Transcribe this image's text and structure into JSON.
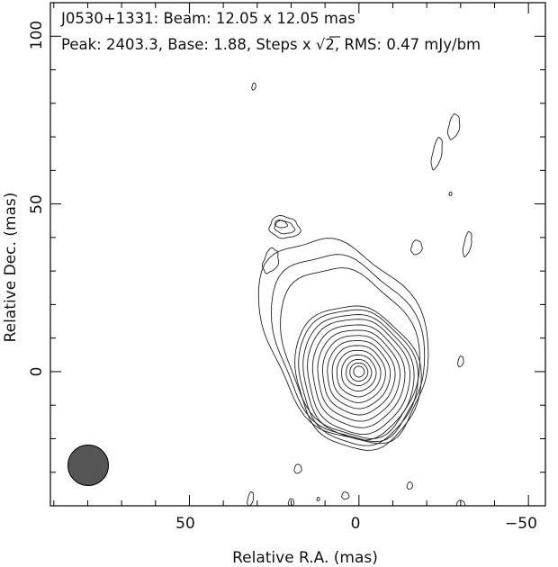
{
  "chart_data": {
    "type": "contour",
    "source": "J0530+1331",
    "title_line1": "J0530+1331: Beam: 12.05 x 12.05 mas",
    "title_line2_prefix": "Peak: 2403.3, Base: 1.88, Steps x ",
    "title_line2_root": "2",
    "title_line2_suffix": ", RMS: 0.47 mJy/bm",
    "beam_mas": [
      12.05,
      12.05
    ],
    "peak": 2403.3,
    "base": 1.88,
    "step_factor": "sqrt(2)",
    "rms": "0.47 mJy/bm",
    "xlabel": "Relative R.A. (mas)",
    "ylabel": "Relative Dec. (mas)",
    "xlim": [
      91,
      -55
    ],
    "ylim": [
      -40,
      110
    ],
    "x_ticks": [
      "50",
      "0",
      "−50"
    ],
    "x_tick_values": [
      50,
      0,
      -50
    ],
    "y_ticks": [
      "0",
      "50",
      "100"
    ],
    "y_tick_values": [
      0,
      50,
      100
    ],
    "beam_color": "#555555"
  }
}
